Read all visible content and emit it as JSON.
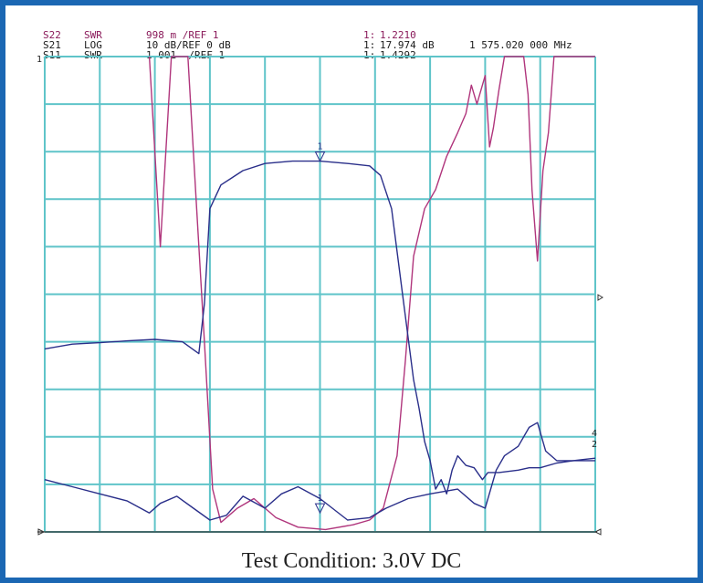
{
  "header": {
    "rows": [
      {
        "param": "S22",
        "format": "SWR",
        "scale": "998 m /REF 1",
        "marker": "1:",
        "marker_value": "1.2210",
        "extra": ""
      },
      {
        "param": "S21",
        "format": "LOG",
        "scale": "10 dB/REF 0 dB",
        "marker": "1:",
        "marker_value": "17.974 dB",
        "extra": "1 575.020 000 MHz"
      },
      {
        "param": "S11",
        "format": "SWR",
        "scale": "1.001  /REF 1",
        "marker": "1:",
        "marker_value": "1.4292",
        "extra": ""
      }
    ]
  },
  "caption": "Test Condition: 3.0V DC",
  "colors": {
    "frame": "#1b67b3",
    "grid": "#5fc4c9",
    "magenta_trace": "#b0357c",
    "blue_trace": "#2a2f8a",
    "header_text": "#8a1a5a"
  },
  "chart_data": {
    "type": "line",
    "title": "",
    "xlabel": "",
    "ylabel": "",
    "grid": true,
    "xlim": [
      0,
      10
    ],
    "ylim": [
      0,
      10
    ],
    "x_divisions": 10,
    "y_divisions": 10,
    "reference_markers": [
      "1",
      "2",
      "4"
    ],
    "markers": [
      {
        "label": "1",
        "x": 5.0,
        "y": 7.8
      },
      {
        "label": "1",
        "x": 5.0,
        "y": 0.4
      }
    ],
    "series": [
      {
        "color": "#b0357c",
        "points": [
          [
            1.9,
            10
          ],
          [
            2.1,
            6
          ],
          [
            2.3,
            10
          ],
          [
            2.6,
            10
          ],
          [
            2.75,
            7
          ],
          [
            2.9,
            4
          ],
          [
            3.05,
            0.9
          ],
          [
            3.2,
            0.2
          ],
          [
            3.5,
            0.5
          ],
          [
            3.8,
            0.7
          ],
          [
            4.2,
            0.3
          ],
          [
            4.6,
            0.1
          ],
          [
            5.1,
            0.05
          ],
          [
            5.6,
            0.15
          ],
          [
            5.9,
            0.25
          ],
          [
            6.15,
            0.5
          ],
          [
            6.4,
            1.6
          ],
          [
            6.55,
            3.6
          ],
          [
            6.7,
            5.8
          ],
          [
            6.9,
            6.8
          ],
          [
            7.1,
            7.2
          ],
          [
            7.3,
            7.9
          ],
          [
            7.5,
            8.4
          ],
          [
            7.65,
            8.8
          ],
          [
            7.75,
            9.4
          ],
          [
            7.85,
            9.0
          ],
          [
            8.0,
            9.6
          ],
          [
            8.08,
            8.1
          ],
          [
            8.15,
            8.5
          ],
          [
            8.25,
            9.3
          ],
          [
            8.35,
            10
          ],
          [
            8.7,
            10
          ],
          [
            8.78,
            9.2
          ],
          [
            8.85,
            7.2
          ],
          [
            8.95,
            5.7
          ],
          [
            9.05,
            7.6
          ],
          [
            9.15,
            8.4
          ],
          [
            9.25,
            10
          ],
          [
            10,
            10
          ]
        ]
      },
      {
        "color": "#2a2f8a",
        "points": [
          [
            0,
            3.85
          ],
          [
            0.5,
            3.95
          ],
          [
            1.0,
            3.98
          ],
          [
            1.5,
            4.02
          ],
          [
            2.0,
            4.05
          ],
          [
            2.5,
            4.0
          ],
          [
            2.8,
            3.75
          ],
          [
            2.9,
            4.8
          ],
          [
            3.0,
            6.8
          ],
          [
            3.2,
            7.3
          ],
          [
            3.6,
            7.6
          ],
          [
            4.0,
            7.75
          ],
          [
            4.5,
            7.8
          ],
          [
            5.0,
            7.8
          ],
          [
            5.5,
            7.75
          ],
          [
            5.9,
            7.7
          ],
          [
            6.1,
            7.5
          ],
          [
            6.3,
            6.8
          ],
          [
            6.5,
            5.0
          ],
          [
            6.7,
            3.2
          ],
          [
            6.8,
            2.6
          ],
          [
            6.9,
            1.9
          ],
          [
            7.0,
            1.5
          ],
          [
            7.1,
            0.9
          ],
          [
            7.2,
            1.1
          ],
          [
            7.3,
            0.8
          ],
          [
            7.4,
            1.3
          ],
          [
            7.5,
            1.6
          ],
          [
            7.65,
            1.4
          ],
          [
            7.8,
            1.35
          ],
          [
            7.95,
            1.1
          ],
          [
            8.05,
            1.25
          ],
          [
            8.25,
            1.25
          ],
          [
            8.6,
            1.3
          ],
          [
            8.8,
            1.35
          ],
          [
            9.0,
            1.35
          ],
          [
            9.3,
            1.45
          ],
          [
            9.6,
            1.5
          ],
          [
            10,
            1.55
          ]
        ]
      },
      {
        "color": "#2a2f8a",
        "points": [
          [
            0,
            1.1
          ],
          [
            0.5,
            0.95
          ],
          [
            1.0,
            0.8
          ],
          [
            1.5,
            0.65
          ],
          [
            1.9,
            0.4
          ],
          [
            2.1,
            0.6
          ],
          [
            2.4,
            0.75
          ],
          [
            2.7,
            0.5
          ],
          [
            3.0,
            0.25
          ],
          [
            3.3,
            0.35
          ],
          [
            3.6,
            0.75
          ],
          [
            4.0,
            0.5
          ],
          [
            4.3,
            0.8
          ],
          [
            4.6,
            0.95
          ],
          [
            5.0,
            0.7
          ],
          [
            5.5,
            0.25
          ],
          [
            5.9,
            0.3
          ],
          [
            6.2,
            0.5
          ],
          [
            6.6,
            0.7
          ],
          [
            7.0,
            0.8
          ],
          [
            7.5,
            0.9
          ],
          [
            7.8,
            0.6
          ],
          [
            8.0,
            0.5
          ],
          [
            8.2,
            1.3
          ],
          [
            8.35,
            1.6
          ],
          [
            8.6,
            1.8
          ],
          [
            8.8,
            2.2
          ],
          [
            8.95,
            2.3
          ],
          [
            9.1,
            1.7
          ],
          [
            9.3,
            1.5
          ],
          [
            9.6,
            1.5
          ],
          [
            10,
            1.5
          ]
        ]
      }
    ]
  }
}
